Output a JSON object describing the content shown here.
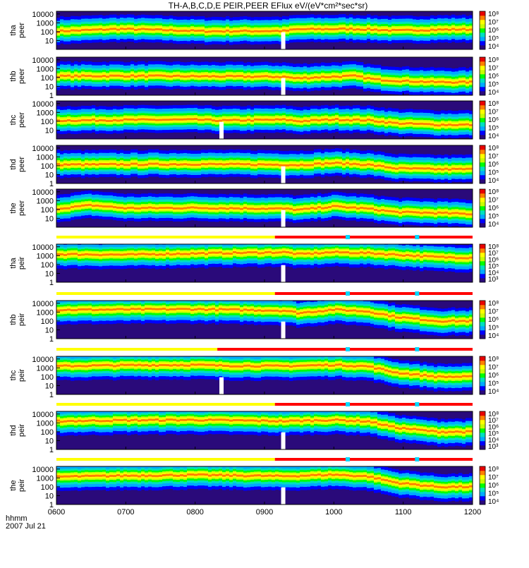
{
  "chart_data": {
    "type": "heatmap",
    "title": "TH-A,B,C,D,E PEIR,PEER EFlux eV/(eV*cm²*sec*sr)",
    "x_axis": {
      "label": "hhmm",
      "date_label": "2007 Jul 21",
      "ticks": [
        "0600",
        "0700",
        "0800",
        "0900",
        "1000",
        "1100",
        "1200"
      ],
      "range_hours": [
        6,
        12
      ]
    },
    "y_axis": {
      "scale": "log",
      "ticks": [
        "1",
        "10",
        "100",
        "1000",
        "10000"
      ],
      "range_ev": [
        1,
        20000
      ]
    },
    "colormap": [
      "#2a0a7a",
      "#0000ff",
      "#00aaff",
      "#00e0c0",
      "#00ff00",
      "#c8ff00",
      "#ffff00",
      "#ff8000",
      "#e80000"
    ],
    "status_bar_colors": {
      "slow_survey": "#ffff00",
      "fast_survey": "#ff0000",
      "marker": "#00d8ff"
    },
    "panels": [
      {
        "probe": "tha",
        "product": "peer",
        "ylabel": "tha\npeer",
        "colorbar_ticks": [
          "10⁴",
          "10⁵",
          "10⁶",
          "10⁷",
          "10⁸"
        ],
        "ytick_labels": [
          "10",
          "100",
          "1000",
          "10000"
        ],
        "gap_hour": 9.27,
        "profile": [
          [
            6.0,
            110
          ],
          [
            6.9,
            200
          ],
          [
            7.3,
            170
          ],
          [
            8.2,
            110
          ],
          [
            9.3,
            120
          ],
          [
            9.45,
            180
          ],
          [
            10.2,
            200
          ],
          [
            10.5,
            180
          ],
          [
            10.9,
            130
          ],
          [
            11.2,
            150
          ],
          [
            11.8,
            180
          ],
          [
            12.0,
            170
          ]
        ],
        "status_bar": false
      },
      {
        "probe": "thb",
        "product": "peer",
        "ylabel": "thb\npeer",
        "colorbar_ticks": [
          "10⁴",
          "10⁵",
          "10⁶",
          "10⁷",
          "10⁸"
        ],
        "ytick_labels": [
          "1",
          "10",
          "100",
          "1000",
          "10000"
        ],
        "gap_hour": 9.27,
        "profile": [
          [
            6.0,
            140
          ],
          [
            7.0,
            150
          ],
          [
            8.5,
            130
          ],
          [
            9.3,
            120
          ],
          [
            9.45,
            80
          ],
          [
            9.8,
            110
          ],
          [
            10.3,
            150
          ],
          [
            10.6,
            60
          ],
          [
            11.0,
            40
          ],
          [
            11.5,
            30
          ],
          [
            12.0,
            30
          ]
        ],
        "status_bar": false
      },
      {
        "probe": "thc",
        "product": "peer",
        "ylabel": "thc\npeer",
        "colorbar_ticks": [
          "10⁴",
          "10⁵",
          "10⁶",
          "10⁷",
          "10⁸"
        ],
        "ytick_labels": [
          "10",
          "100",
          "1000",
          "10000"
        ],
        "gap_hour": 8.38,
        "profile": [
          [
            6.0,
            120
          ],
          [
            7.0,
            140
          ],
          [
            8.0,
            150
          ],
          [
            8.4,
            120
          ],
          [
            9.3,
            150
          ],
          [
            9.5,
            100
          ],
          [
            10.0,
            160
          ],
          [
            10.5,
            130
          ],
          [
            10.9,
            60
          ],
          [
            11.5,
            40
          ],
          [
            12.0,
            40
          ]
        ],
        "status_bar": false
      },
      {
        "probe": "thd",
        "product": "peer",
        "ylabel": "thd\npeer",
        "colorbar_ticks": [
          "10⁴",
          "10⁵",
          "10⁶",
          "10⁷",
          "10⁸"
        ],
        "ytick_labels": [
          "1",
          "10",
          "100",
          "1000",
          "10000"
        ],
        "gap_hour": 9.27,
        "profile": [
          [
            6.0,
            130
          ],
          [
            7.0,
            140
          ],
          [
            8.0,
            150
          ],
          [
            9.3,
            130
          ],
          [
            9.5,
            120
          ],
          [
            10.0,
            200
          ],
          [
            10.5,
            130
          ],
          [
            10.9,
            50
          ],
          [
            11.5,
            40
          ],
          [
            12.0,
            40
          ]
        ],
        "status_bar": false
      },
      {
        "probe": "the",
        "product": "peer",
        "ylabel": "the\npeer",
        "colorbar_ticks": [
          "10⁴",
          "10⁵",
          "10⁶",
          "10⁷",
          "10⁸"
        ],
        "ytick_labels": [
          "10",
          "100",
          "1000",
          "10000"
        ],
        "gap_hour": 9.27,
        "profile": [
          [
            6.0,
            120
          ],
          [
            6.5,
            300
          ],
          [
            7.0,
            140
          ],
          [
            8.0,
            150
          ],
          [
            9.3,
            120
          ],
          [
            9.5,
            90
          ],
          [
            10.0,
            220
          ],
          [
            10.5,
            120
          ],
          [
            10.9,
            50
          ],
          [
            11.5,
            40
          ],
          [
            12.0,
            30
          ]
        ],
        "status_bar": false
      },
      {
        "probe": "tha",
        "product": "peir",
        "ylabel": "tha\npeir",
        "colorbar_ticks": [
          "10³",
          "10⁴",
          "10⁵",
          "10⁶",
          "10⁷",
          "10⁸"
        ],
        "ytick_labels": [
          "1",
          "10",
          "100",
          "1000",
          "10000"
        ],
        "gap_hour": 9.27,
        "profile": [
          [
            6.0,
            1500
          ],
          [
            7.0,
            1300
          ],
          [
            8.0,
            1800
          ],
          [
            9.3,
            2500
          ],
          [
            9.5,
            1500
          ],
          [
            10.0,
            2500
          ],
          [
            10.5,
            2000
          ],
          [
            11.0,
            1200
          ],
          [
            11.5,
            700
          ],
          [
            12.0,
            600
          ]
        ],
        "status_bar": true,
        "status_switch_hour": 9.15,
        "markers": [
          10.2,
          11.2
        ]
      },
      {
        "probe": "thb",
        "product": "peir",
        "ylabel": "thb\npeir",
        "colorbar_ticks": [
          "10⁴",
          "10⁵",
          "10⁶",
          "10⁷",
          "10⁸"
        ],
        "ytick_labels": [
          "1",
          "10",
          "100",
          "1000",
          "10000"
        ],
        "gap_hour": 9.27,
        "profile": [
          [
            6.0,
            1800
          ],
          [
            7.0,
            2000
          ],
          [
            8.0,
            2200
          ],
          [
            9.3,
            1500
          ],
          [
            9.5,
            800
          ],
          [
            10.0,
            2000
          ],
          [
            10.5,
            1200
          ],
          [
            10.9,
            300
          ],
          [
            11.5,
            100
          ],
          [
            12.0,
            100
          ]
        ],
        "status_bar": true,
        "status_switch_hour": 9.15,
        "markers": [
          10.2,
          11.2
        ]
      },
      {
        "probe": "thc",
        "product": "peir",
        "ylabel": "thc\npeir",
        "colorbar_ticks": [
          "10⁴",
          "10⁵",
          "10⁶",
          "10⁷",
          "10⁸"
        ],
        "ytick_labels": [
          "1",
          "10",
          "100",
          "1000",
          "10000"
        ],
        "gap_hour": 8.38,
        "profile": [
          [
            6.0,
            1600
          ],
          [
            7.0,
            2000
          ],
          [
            8.0,
            2200
          ],
          [
            8.4,
            1800
          ],
          [
            9.3,
            1600
          ],
          [
            10.0,
            2200
          ],
          [
            10.5,
            1500
          ],
          [
            10.9,
            300
          ],
          [
            11.5,
            100
          ],
          [
            12.0,
            100
          ]
        ],
        "status_bar": true,
        "status_switch_hour": 8.32,
        "markers": [
          10.2,
          11.2
        ]
      },
      {
        "probe": "thd",
        "product": "peir",
        "ylabel": "thd\npeir",
        "colorbar_ticks": [
          "10³",
          "10⁴",
          "10⁵",
          "10⁶",
          "10⁷",
          "10⁸"
        ],
        "ytick_labels": [
          "1",
          "10",
          "100",
          "1000",
          "10000"
        ],
        "gap_hour": 9.27,
        "profile": [
          [
            6.0,
            1600
          ],
          [
            7.0,
            2000
          ],
          [
            8.0,
            2200
          ],
          [
            9.3,
            1600
          ],
          [
            10.0,
            2200
          ],
          [
            10.5,
            1500
          ],
          [
            10.9,
            300
          ],
          [
            11.5,
            100
          ],
          [
            12.0,
            100
          ]
        ],
        "status_bar": true,
        "status_switch_hour": 9.15,
        "markers": [
          10.2,
          11.2
        ]
      },
      {
        "probe": "the",
        "product": "peir",
        "ylabel": "the\npeir",
        "colorbar_ticks": [
          "10⁴",
          "10⁵",
          "10⁶",
          "10⁷",
          "10⁸"
        ],
        "ytick_labels": [
          "1",
          "10",
          "100",
          "1000",
          "10000"
        ],
        "gap_hour": 9.27,
        "profile": [
          [
            6.0,
            1400
          ],
          [
            7.0,
            1800
          ],
          [
            8.0,
            2200
          ],
          [
            9.3,
            1600
          ],
          [
            10.0,
            2400
          ],
          [
            10.5,
            1500
          ],
          [
            10.9,
            300
          ],
          [
            11.5,
            100
          ],
          [
            12.0,
            100
          ]
        ],
        "status_bar": true,
        "status_switch_hour": 9.15,
        "markers": [
          10.2,
          11.2
        ]
      }
    ]
  }
}
